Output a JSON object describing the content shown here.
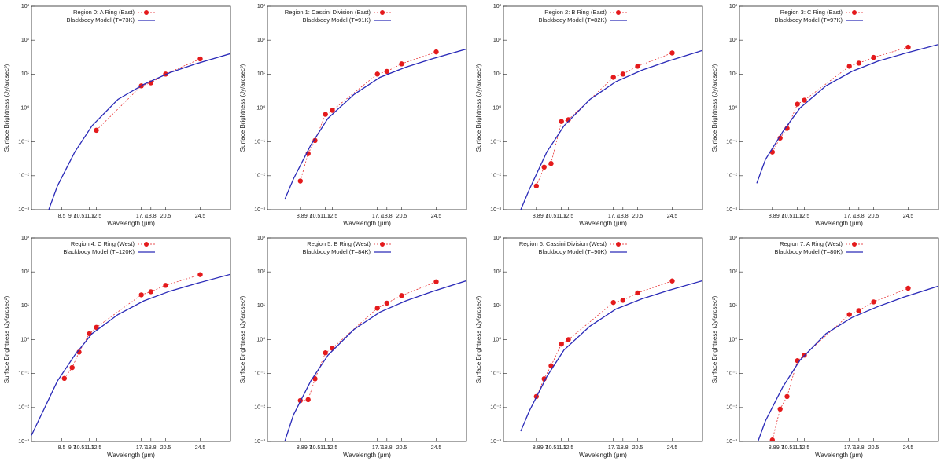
{
  "chart_data": [
    {
      "type": "scatter",
      "xlabel": "Wavelength (μm)",
      "ylabel": "Surface Brightness (Jy/arcsec²)",
      "log_y": true,
      "xlim": [
        5,
        28
      ],
      "ylim": [
        0.001,
        1000
      ],
      "xticks": [
        8.5,
        9.7,
        10.5,
        11.7,
        12.5,
        17.7,
        18.8,
        20.5,
        24.5
      ],
      "yticks": [
        {
          "value": 0.001,
          "label": "10⁻³"
        },
        {
          "value": 0.01,
          "label": "10⁻²"
        },
        {
          "value": 0.1,
          "label": "10⁻¹"
        },
        {
          "value": 1,
          "label": "10⁰"
        },
        {
          "value": 10,
          "label": "10¹"
        },
        {
          "value": 100,
          "label": "10²"
        },
        {
          "value": 1000,
          "label": "10³"
        }
      ],
      "series": [
        {
          "name": "Region 0: A Ring (East)",
          "color": "#e41a1c",
          "style": "points",
          "x": [
            12.5,
            17.7,
            18.8,
            20.5,
            24.5
          ],
          "values": [
            0.22,
            4.5,
            5.5,
            10,
            28
          ]
        },
        {
          "name": "Blackbody Model (T=73K)",
          "color": "#2a2ab8",
          "style": "line",
          "x": [
            7,
            8,
            10,
            12,
            15,
            18,
            21,
            24,
            28
          ],
          "values": [
            0.001,
            0.005,
            0.05,
            0.3,
            1.8,
            5,
            11,
            20,
            40
          ]
        }
      ]
    },
    {
      "type": "scatter",
      "xlabel": "Wavelength (μm)",
      "ylabel": "Surface Brightness (Jy/arcsec²)",
      "log_y": true,
      "xlim": [
        5,
        28
      ],
      "ylim": [
        0.001,
        1000
      ],
      "xticks": [
        8.8,
        9.7,
        10.5,
        11.7,
        12.5,
        17.7,
        18.8,
        20.5,
        24.5
      ],
      "yticks": [
        {
          "value": 0.001,
          "label": "10⁻³"
        },
        {
          "value": 0.01,
          "label": "10⁻²"
        },
        {
          "value": 0.1,
          "label": "10⁻¹"
        },
        {
          "value": 1,
          "label": "10⁰"
        },
        {
          "value": 10,
          "label": "10¹"
        },
        {
          "value": 100,
          "label": "10²"
        },
        {
          "value": 1000,
          "label": "10³"
        }
      ],
      "series": [
        {
          "name": "Region 1: Cassini Division (East)",
          "color": "#e41a1c",
          "style": "points",
          "x": [
            8.8,
            9.7,
            10.5,
            11.7,
            12.5,
            17.7,
            18.8,
            20.5,
            24.5
          ],
          "values": [
            0.007,
            0.045,
            0.11,
            0.65,
            0.85,
            10,
            12,
            20,
            45
          ]
        },
        {
          "name": "Blackbody Model (T=91K)",
          "color": "#2a2ab8",
          "style": "line",
          "x": [
            7,
            8,
            10,
            12,
            15,
            18,
            21,
            24,
            28
          ],
          "values": [
            0.002,
            0.008,
            0.08,
            0.5,
            2.5,
            8,
            16,
            28,
            55
          ]
        }
      ]
    },
    {
      "type": "scatter",
      "xlabel": "Wavelength (μm)",
      "ylabel": "Surface Brightness (Jy/arcsec²)",
      "log_y": true,
      "xlim": [
        5,
        28
      ],
      "ylim": [
        0.001,
        1000
      ],
      "xticks": [
        8.8,
        9.7,
        10.5,
        11.7,
        12.5,
        17.7,
        18.8,
        20.5,
        24.5
      ],
      "yticks": [
        {
          "value": 0.001,
          "label": "10⁻³"
        },
        {
          "value": 0.01,
          "label": "10⁻²"
        },
        {
          "value": 0.1,
          "label": "10⁻¹"
        },
        {
          "value": 1,
          "label": "10⁰"
        },
        {
          "value": 10,
          "label": "10¹"
        },
        {
          "value": 100,
          "label": "10²"
        },
        {
          "value": 1000,
          "label": "10³"
        }
      ],
      "series": [
        {
          "name": "Region 2: B Ring (East)",
          "color": "#e41a1c",
          "style": "points",
          "x": [
            8.8,
            9.7,
            10.5,
            11.7,
            12.5,
            17.7,
            18.8,
            20.5,
            24.5
          ],
          "values": [
            0.005,
            0.018,
            0.023,
            0.4,
            0.45,
            8,
            10,
            17,
            42
          ]
        },
        {
          "name": "Blackbody Model (T=82K)",
          "color": "#2a2ab8",
          "style": "line",
          "x": [
            7,
            8,
            10,
            12,
            15,
            18,
            21,
            24,
            28
          ],
          "values": [
            0.001,
            0.004,
            0.05,
            0.3,
            1.8,
            6,
            13,
            24,
            50
          ]
        }
      ]
    },
    {
      "type": "scatter",
      "xlabel": "Wavelength (μm)",
      "ylabel": "Surface Brightness (Jy/arcsec²)",
      "log_y": true,
      "xlim": [
        5,
        28
      ],
      "ylim": [
        0.001,
        1000
      ],
      "xticks": [
        8.8,
        9.7,
        10.5,
        11.7,
        12.5,
        17.7,
        18.8,
        20.5,
        24.5
      ],
      "yticks": [
        {
          "value": 0.001,
          "label": "10⁻³"
        },
        {
          "value": 0.01,
          "label": "10⁻²"
        },
        {
          "value": 0.1,
          "label": "10⁻¹"
        },
        {
          "value": 1,
          "label": "10⁰"
        },
        {
          "value": 10,
          "label": "10¹"
        },
        {
          "value": 100,
          "label": "10²"
        },
        {
          "value": 1000,
          "label": "10³"
        }
      ],
      "series": [
        {
          "name": "Region 3: C Ring (East)",
          "color": "#e41a1c",
          "style": "points",
          "x": [
            8.8,
            9.7,
            10.5,
            11.7,
            12.5,
            17.7,
            18.8,
            20.5,
            24.5
          ],
          "values": [
            0.05,
            0.13,
            0.25,
            1.3,
            1.7,
            17,
            21,
            31,
            62
          ]
        },
        {
          "name": "Blackbody Model (T=97K)",
          "color": "#2a2ab8",
          "style": "line",
          "x": [
            7,
            8,
            10,
            12,
            15,
            18,
            21,
            24,
            28
          ],
          "values": [
            0.006,
            0.03,
            0.2,
            1,
            4.5,
            12,
            24,
            40,
            75
          ]
        }
      ]
    },
    {
      "type": "scatter",
      "xlabel": "Wavelength (μm)",
      "ylabel": "Surface Brightness (Jy/arcsec²)",
      "log_y": true,
      "xlim": [
        5,
        28
      ],
      "ylim": [
        0.001,
        1000
      ],
      "xticks": [
        8.5,
        9.7,
        10.5,
        11.7,
        12.5,
        17.7,
        18.8,
        20.5,
        24.5
      ],
      "yticks": [
        {
          "value": 0.001,
          "label": "10⁻³"
        },
        {
          "value": 0.01,
          "label": "10⁻²"
        },
        {
          "value": 0.1,
          "label": "10⁻¹"
        },
        {
          "value": 1,
          "label": "10⁰"
        },
        {
          "value": 10,
          "label": "10¹"
        },
        {
          "value": 100,
          "label": "10²"
        },
        {
          "value": 1000,
          "label": "10³"
        }
      ],
      "series": [
        {
          "name": "Region 4: C Ring (West)",
          "color": "#e41a1c",
          "style": "points",
          "x": [
            8.8,
            9.7,
            10.5,
            11.7,
            12.5,
            17.7,
            18.8,
            20.5,
            24.5
          ],
          "values": [
            0.072,
            0.15,
            0.43,
            1.5,
            2.3,
            21,
            26,
            40,
            83
          ]
        },
        {
          "name": "Blackbody Model (T=120K)",
          "color": "#2a2ab8",
          "style": "line",
          "x": [
            5,
            8,
            10,
            12,
            15,
            18,
            21,
            24,
            28
          ],
          "values": [
            0.0015,
            0.06,
            0.35,
            1.5,
            5.5,
            14,
            27,
            45,
            85
          ]
        }
      ]
    },
    {
      "type": "scatter",
      "xlabel": "Wavelength (μm)",
      "ylabel": "Surface Brightness (Jy/arcsec²)",
      "log_y": true,
      "xlim": [
        5,
        28
      ],
      "ylim": [
        0.001,
        1000
      ],
      "xticks": [
        8.8,
        9.7,
        10.5,
        11.7,
        12.5,
        17.7,
        18.8,
        20.5,
        24.5
      ],
      "yticks": [
        {
          "value": 0.001,
          "label": "10⁻³"
        },
        {
          "value": 0.01,
          "label": "10⁻²"
        },
        {
          "value": 0.1,
          "label": "10⁻¹"
        },
        {
          "value": 1,
          "label": "10⁰"
        },
        {
          "value": 10,
          "label": "10¹"
        },
        {
          "value": 100,
          "label": "10²"
        },
        {
          "value": 1000,
          "label": "10³"
        }
      ],
      "series": [
        {
          "name": "Region 5: B Ring (West)",
          "color": "#e41a1c",
          "style": "points",
          "x": [
            8.8,
            9.7,
            10.5,
            11.7,
            12.5,
            17.7,
            18.8,
            20.5,
            24.5
          ],
          "values": [
            0.016,
            0.017,
            0.07,
            0.41,
            0.56,
            8.5,
            12,
            20,
            51
          ]
        },
        {
          "name": "Blackbody Model (T=84K)",
          "color": "#2a2ab8",
          "style": "line",
          "x": [
            7,
            8,
            10,
            12,
            15,
            18,
            21,
            24,
            28
          ],
          "values": [
            0.001,
            0.006,
            0.06,
            0.35,
            2,
            6.5,
            14,
            26,
            55
          ]
        }
      ]
    },
    {
      "type": "scatter",
      "xlabel": "Wavelength (μm)",
      "ylabel": "Surface Brightness (Jy/arcsec²)",
      "log_y": true,
      "xlim": [
        5,
        28
      ],
      "ylim": [
        0.001,
        1000
      ],
      "xticks": [
        8.8,
        9.7,
        10.5,
        11.7,
        12.5,
        17.7,
        18.8,
        20.5,
        24.5
      ],
      "yticks": [
        {
          "value": 0.001,
          "label": "10⁻³"
        },
        {
          "value": 0.01,
          "label": "10⁻²"
        },
        {
          "value": 0.1,
          "label": "10⁻¹"
        },
        {
          "value": 1,
          "label": "10⁰"
        },
        {
          "value": 10,
          "label": "10¹"
        },
        {
          "value": 100,
          "label": "10²"
        },
        {
          "value": 1000,
          "label": "10³"
        }
      ],
      "series": [
        {
          "name": "Region 6: Cassini Division (West)",
          "color": "#e41a1c",
          "style": "points",
          "x": [
            8.8,
            9.7,
            10.5,
            11.7,
            12.5,
            17.7,
            18.8,
            20.5,
            24.5
          ],
          "values": [
            0.021,
            0.07,
            0.17,
            0.74,
            1.0,
            12.5,
            14.5,
            24,
            54
          ]
        },
        {
          "name": "Blackbody Model (T=90K)",
          "color": "#2a2ab8",
          "style": "line",
          "x": [
            7,
            8,
            10,
            12,
            15,
            18,
            21,
            24,
            28
          ],
          "values": [
            0.002,
            0.008,
            0.08,
            0.5,
            2.5,
            8,
            16,
            28,
            55
          ]
        }
      ]
    },
    {
      "type": "scatter",
      "xlabel": "Wavelength (μm)",
      "ylabel": "Surface Brightness (Jy/arcsec²)",
      "log_y": true,
      "xlim": [
        5,
        28
      ],
      "ylim": [
        0.001,
        1000
      ],
      "xticks": [
        8.8,
        9.7,
        10.5,
        11.7,
        12.5,
        17.7,
        18.8,
        20.5,
        24.5
      ],
      "yticks": [
        {
          "value": 0.001,
          "label": "10⁻³"
        },
        {
          "value": 0.01,
          "label": "10⁻²"
        },
        {
          "value": 0.1,
          "label": "10⁻¹"
        },
        {
          "value": 1,
          "label": "10⁰"
        },
        {
          "value": 10,
          "label": "10¹"
        },
        {
          "value": 100,
          "label": "10²"
        },
        {
          "value": 1000,
          "label": "10³"
        }
      ],
      "series": [
        {
          "name": "Region 7: A Ring (West)",
          "color": "#e41a1c",
          "style": "points",
          "x": [
            8.8,
            9.7,
            10.5,
            11.7,
            12.5,
            17.7,
            18.8,
            20.5,
            24.5
          ],
          "values": [
            0.0011,
            0.009,
            0.021,
            0.24,
            0.35,
            5.5,
            7.2,
            13,
            33
          ]
        },
        {
          "name": "Blackbody Model (T=80K)",
          "color": "#2a2ab8",
          "style": "line",
          "x": [
            7,
            8,
            10,
            12,
            15,
            18,
            21,
            24,
            28
          ],
          "values": [
            0.0008,
            0.004,
            0.04,
            0.25,
            1.5,
            4.5,
            9.5,
            18,
            38
          ]
        }
      ]
    }
  ]
}
